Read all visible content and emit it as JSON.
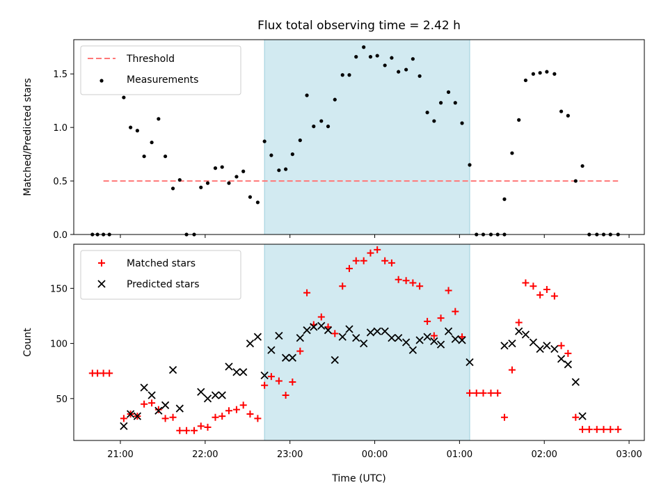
{
  "chart_data": {
    "type": "scatter",
    "title": "Flux total observing time = 2.42 h",
    "xlabel": "Time (UTC)",
    "x_ticks": [
      "21:00",
      "22:00",
      "23:00",
      "00:00",
      "01:00",
      "02:00",
      "03:00"
    ],
    "x_tick_hours": [
      21,
      22,
      23,
      24,
      25,
      26,
      27
    ],
    "x_range_hours": [
      20.45,
      27.18
    ],
    "highlight_span_hours": [
      22.7,
      25.12
    ],
    "highlight_color": "#add8e6",
    "panels": [
      {
        "ylabel": "Matched/Predicted stars",
        "ylim": [
          0,
          1.82
        ],
        "y_ticks": [
          0.0,
          0.5,
          1.0,
          1.5
        ],
        "y_tick_labels": [
          "0.0",
          "0.5",
          "1.0",
          "1.5"
        ],
        "legend_position": "upper-left",
        "threshold": {
          "name": "Threshold",
          "value": 0.5,
          "x_range_hours": [
            20.8,
            26.87
          ],
          "color": "#ff7777",
          "style": "dashed"
        },
        "series": [
          {
            "name": "Measurements",
            "marker": "dot",
            "color": "#000000",
            "points": [
              [
                20.67,
                0.0
              ],
              [
                20.73,
                0.0
              ],
              [
                20.8,
                0.0
              ],
              [
                20.87,
                0.0
              ],
              [
                21.04,
                1.28
              ],
              [
                21.12,
                1.0
              ],
              [
                21.2,
                0.97
              ],
              [
                21.28,
                0.73
              ],
              [
                21.37,
                0.86
              ],
              [
                21.45,
                1.08
              ],
              [
                21.53,
                0.73
              ],
              [
                21.62,
                0.43
              ],
              [
                21.7,
                0.51
              ],
              [
                21.78,
                0.0
              ],
              [
                21.87,
                0.0
              ],
              [
                21.95,
                0.44
              ],
              [
                22.03,
                0.48
              ],
              [
                22.12,
                0.62
              ],
              [
                22.2,
                0.63
              ],
              [
                22.28,
                0.48
              ],
              [
                22.37,
                0.54
              ],
              [
                22.45,
                0.59
              ],
              [
                22.53,
                0.35
              ],
              [
                22.62,
                0.3
              ],
              [
                22.7,
                0.87
              ],
              [
                22.78,
                0.74
              ],
              [
                22.87,
                0.6
              ],
              [
                22.95,
                0.61
              ],
              [
                23.03,
                0.75
              ],
              [
                23.12,
                0.88
              ],
              [
                23.2,
                1.3
              ],
              [
                23.28,
                1.01
              ],
              [
                23.37,
                1.06
              ],
              [
                23.45,
                1.01
              ],
              [
                23.53,
                1.26
              ],
              [
                23.62,
                1.49
              ],
              [
                23.7,
                1.49
              ],
              [
                23.78,
                1.66
              ],
              [
                23.87,
                1.75
              ],
              [
                23.95,
                1.66
              ],
              [
                24.03,
                1.67
              ],
              [
                24.12,
                1.58
              ],
              [
                24.2,
                1.65
              ],
              [
                24.28,
                1.52
              ],
              [
                24.37,
                1.54
              ],
              [
                24.45,
                1.64
              ],
              [
                24.53,
                1.48
              ],
              [
                24.62,
                1.14
              ],
              [
                24.7,
                1.06
              ],
              [
                24.78,
                1.23
              ],
              [
                24.87,
                1.33
              ],
              [
                24.95,
                1.23
              ],
              [
                25.03,
                1.04
              ],
              [
                25.12,
                0.65
              ],
              [
                25.2,
                0.0
              ],
              [
                25.28,
                0.0
              ],
              [
                25.37,
                0.0
              ],
              [
                25.45,
                0.0
              ],
              [
                25.53,
                0.0
              ],
              [
                25.53,
                0.33
              ],
              [
                25.62,
                0.76
              ],
              [
                25.7,
                1.07
              ],
              [
                25.78,
                1.44
              ],
              [
                25.87,
                1.5
              ],
              [
                25.95,
                1.51
              ],
              [
                26.03,
                1.52
              ],
              [
                26.12,
                1.5
              ],
              [
                26.2,
                1.15
              ],
              [
                26.28,
                1.11
              ],
              [
                26.37,
                0.5
              ],
              [
                26.45,
                0.64
              ],
              [
                26.53,
                0.0
              ],
              [
                26.62,
                0.0
              ],
              [
                26.7,
                0.0
              ],
              [
                26.78,
                0.0
              ],
              [
                26.87,
                0.0
              ]
            ]
          }
        ]
      },
      {
        "ylabel": "Count",
        "ylim": [
          12,
          190
        ],
        "y_ticks": [
          50,
          100,
          150
        ],
        "y_tick_labels": [
          "50",
          "100",
          "150"
        ],
        "legend_position": "upper-left",
        "series": [
          {
            "name": "Matched stars",
            "marker": "plus",
            "color": "#ff0000",
            "points": [
              [
                20.67,
                73
              ],
              [
                20.73,
                73
              ],
              [
                20.8,
                73
              ],
              [
                20.87,
                73
              ],
              [
                21.04,
                32
              ],
              [
                21.12,
                36
              ],
              [
                21.2,
                34
              ],
              [
                21.28,
                45
              ],
              [
                21.37,
                46
              ],
              [
                21.45,
                40
              ],
              [
                21.53,
                32
              ],
              [
                21.62,
                33
              ],
              [
                21.7,
                21
              ],
              [
                21.78,
                21
              ],
              [
                21.87,
                21
              ],
              [
                21.95,
                25
              ],
              [
                22.03,
                24
              ],
              [
                22.12,
                33
              ],
              [
                22.2,
                34
              ],
              [
                22.28,
                39
              ],
              [
                22.37,
                40
              ],
              [
                22.45,
                44
              ],
              [
                22.53,
                36
              ],
              [
                22.62,
                32
              ],
              [
                22.7,
                62
              ],
              [
                22.78,
                70
              ],
              [
                22.87,
                66
              ],
              [
                22.95,
                53
              ],
              [
                23.03,
                65
              ],
              [
                23.12,
                93
              ],
              [
                23.2,
                146
              ],
              [
                23.28,
                117
              ],
              [
                23.37,
                124
              ],
              [
                23.45,
                115
              ],
              [
                23.53,
                109
              ],
              [
                23.62,
                152
              ],
              [
                23.7,
                168
              ],
              [
                23.78,
                175
              ],
              [
                23.87,
                175
              ],
              [
                23.95,
                182
              ],
              [
                24.03,
                185
              ],
              [
                24.12,
                175
              ],
              [
                24.2,
                173
              ],
              [
                24.28,
                158
              ],
              [
                24.37,
                157
              ],
              [
                24.45,
                155
              ],
              [
                24.53,
                152
              ],
              [
                24.62,
                120
              ],
              [
                24.7,
                107
              ],
              [
                24.78,
                123
              ],
              [
                24.87,
                148
              ],
              [
                24.95,
                129
              ],
              [
                25.03,
                106
              ],
              [
                25.12,
                55
              ],
              [
                25.2,
                55
              ],
              [
                25.28,
                55
              ],
              [
                25.37,
                55
              ],
              [
                25.45,
                55
              ],
              [
                25.53,
                33
              ],
              [
                25.62,
                76
              ],
              [
                25.7,
                119
              ],
              [
                25.78,
                155
              ],
              [
                25.87,
                152
              ],
              [
                25.95,
                144
              ],
              [
                26.03,
                149
              ],
              [
                26.12,
                143
              ],
              [
                26.2,
                98
              ],
              [
                26.28,
                91
              ],
              [
                26.37,
                33
              ],
              [
                26.45,
                22
              ],
              [
                26.53,
                22
              ],
              [
                26.62,
                22
              ],
              [
                26.7,
                22
              ],
              [
                26.78,
                22
              ],
              [
                26.87,
                22
              ]
            ]
          },
          {
            "name": "Predicted stars",
            "marker": "x",
            "color": "#000000",
            "points": [
              [
                21.04,
                25
              ],
              [
                21.12,
                36
              ],
              [
                21.2,
                34
              ],
              [
                21.28,
                60
              ],
              [
                21.37,
                53
              ],
              [
                21.45,
                39
              ],
              [
                21.53,
                44
              ],
              [
                21.62,
                76
              ],
              [
                21.7,
                41
              ],
              [
                21.95,
                56
              ],
              [
                22.03,
                50
              ],
              [
                22.12,
                53
              ],
              [
                22.2,
                53
              ],
              [
                22.28,
                79
              ],
              [
                22.37,
                74
              ],
              [
                22.45,
                74
              ],
              [
                22.53,
                100
              ],
              [
                22.62,
                106
              ],
              [
                22.7,
                71
              ],
              [
                22.78,
                94
              ],
              [
                22.87,
                107
              ],
              [
                22.95,
                87
              ],
              [
                23.03,
                87
              ],
              [
                23.12,
                105
              ],
              [
                23.2,
                112
              ],
              [
                23.28,
                115
              ],
              [
                23.37,
                116
              ],
              [
                23.45,
                112
              ],
              [
                23.53,
                85
              ],
              [
                23.62,
                106
              ],
              [
                23.7,
                113
              ],
              [
                23.78,
                105
              ],
              [
                23.87,
                100
              ],
              [
                23.95,
                110
              ],
              [
                24.03,
                111
              ],
              [
                24.12,
                111
              ],
              [
                24.2,
                105
              ],
              [
                24.28,
                105
              ],
              [
                24.37,
                101
              ],
              [
                24.45,
                94
              ],
              [
                24.53,
                103
              ],
              [
                24.62,
                106
              ],
              [
                24.7,
                102
              ],
              [
                24.78,
                99
              ],
              [
                24.87,
                111
              ],
              [
                24.95,
                104
              ],
              [
                25.03,
                103
              ],
              [
                25.12,
                83
              ],
              [
                25.53,
                98
              ],
              [
                25.62,
                100
              ],
              [
                25.7,
                111
              ],
              [
                25.78,
                108
              ],
              [
                25.87,
                101
              ],
              [
                25.95,
                95
              ],
              [
                26.03,
                98
              ],
              [
                26.12,
                95
              ],
              [
                26.2,
                86
              ],
              [
                26.28,
                81
              ],
              [
                26.37,
                65
              ],
              [
                26.45,
                34
              ]
            ]
          }
        ]
      }
    ]
  }
}
